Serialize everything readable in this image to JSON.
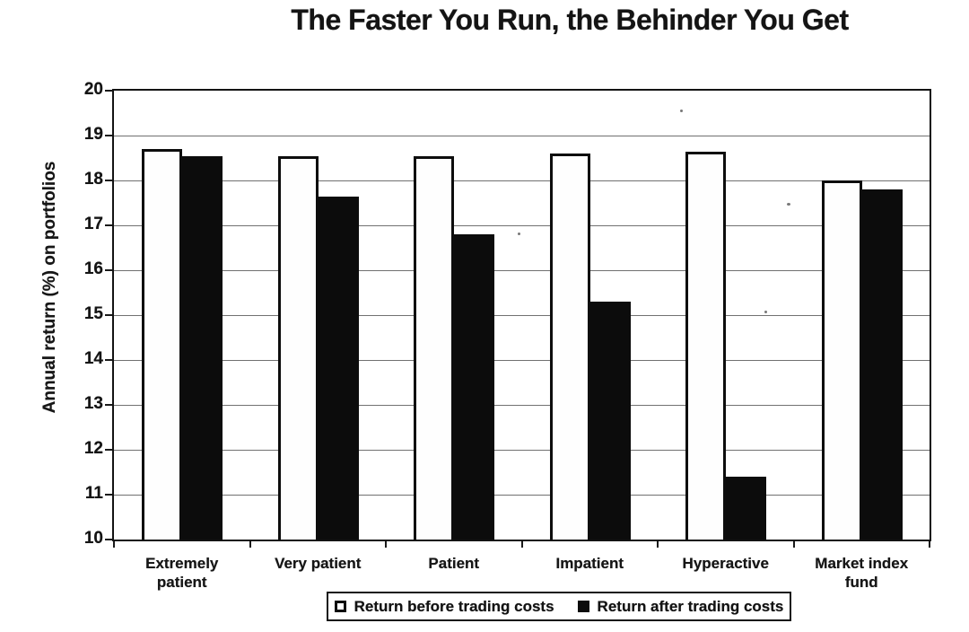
{
  "title": "The Faster You Run, the Behinder You Get",
  "chart_data": {
    "type": "bar",
    "title": "The Faster You Run, the Behinder You Get",
    "categories": [
      "Extremely patient",
      "Very patient",
      "Patient",
      "Impatient",
      "Hyperactive",
      "Market index fund"
    ],
    "category_labels": [
      "Extremely\npatient",
      "Very patient",
      "Patient",
      "Impatient",
      "Hyperactive",
      "Market index\nfund"
    ],
    "series": [
      {
        "name": "Return before trading costs",
        "style": "white-outlined",
        "color": "#ffffff",
        "values": [
          18.7,
          18.55,
          18.55,
          18.6,
          18.65,
          18.0
        ]
      },
      {
        "name": "Return after trading costs",
        "style": "solid-black",
        "color": "#0c0c0c",
        "values": [
          18.55,
          17.65,
          16.8,
          15.3,
          11.4,
          17.8
        ]
      }
    ],
    "xlabel": "",
    "ylabel": "Annual return (%) on portfolios",
    "ylim": [
      10,
      20
    ],
    "yticks": [
      10,
      11,
      12,
      13,
      14,
      15,
      16,
      17,
      18,
      19,
      20
    ],
    "grid": "horizontal",
    "legend_position": "bottom"
  },
  "legend": {
    "before_label": "Return before trading costs",
    "after_label": "Return after trading costs"
  },
  "colors": {
    "ink": "#131313",
    "background": "#ffffff",
    "grid": "#4e4e4e",
    "bar_before": "#ffffff",
    "bar_after": "#0c0c0c"
  }
}
